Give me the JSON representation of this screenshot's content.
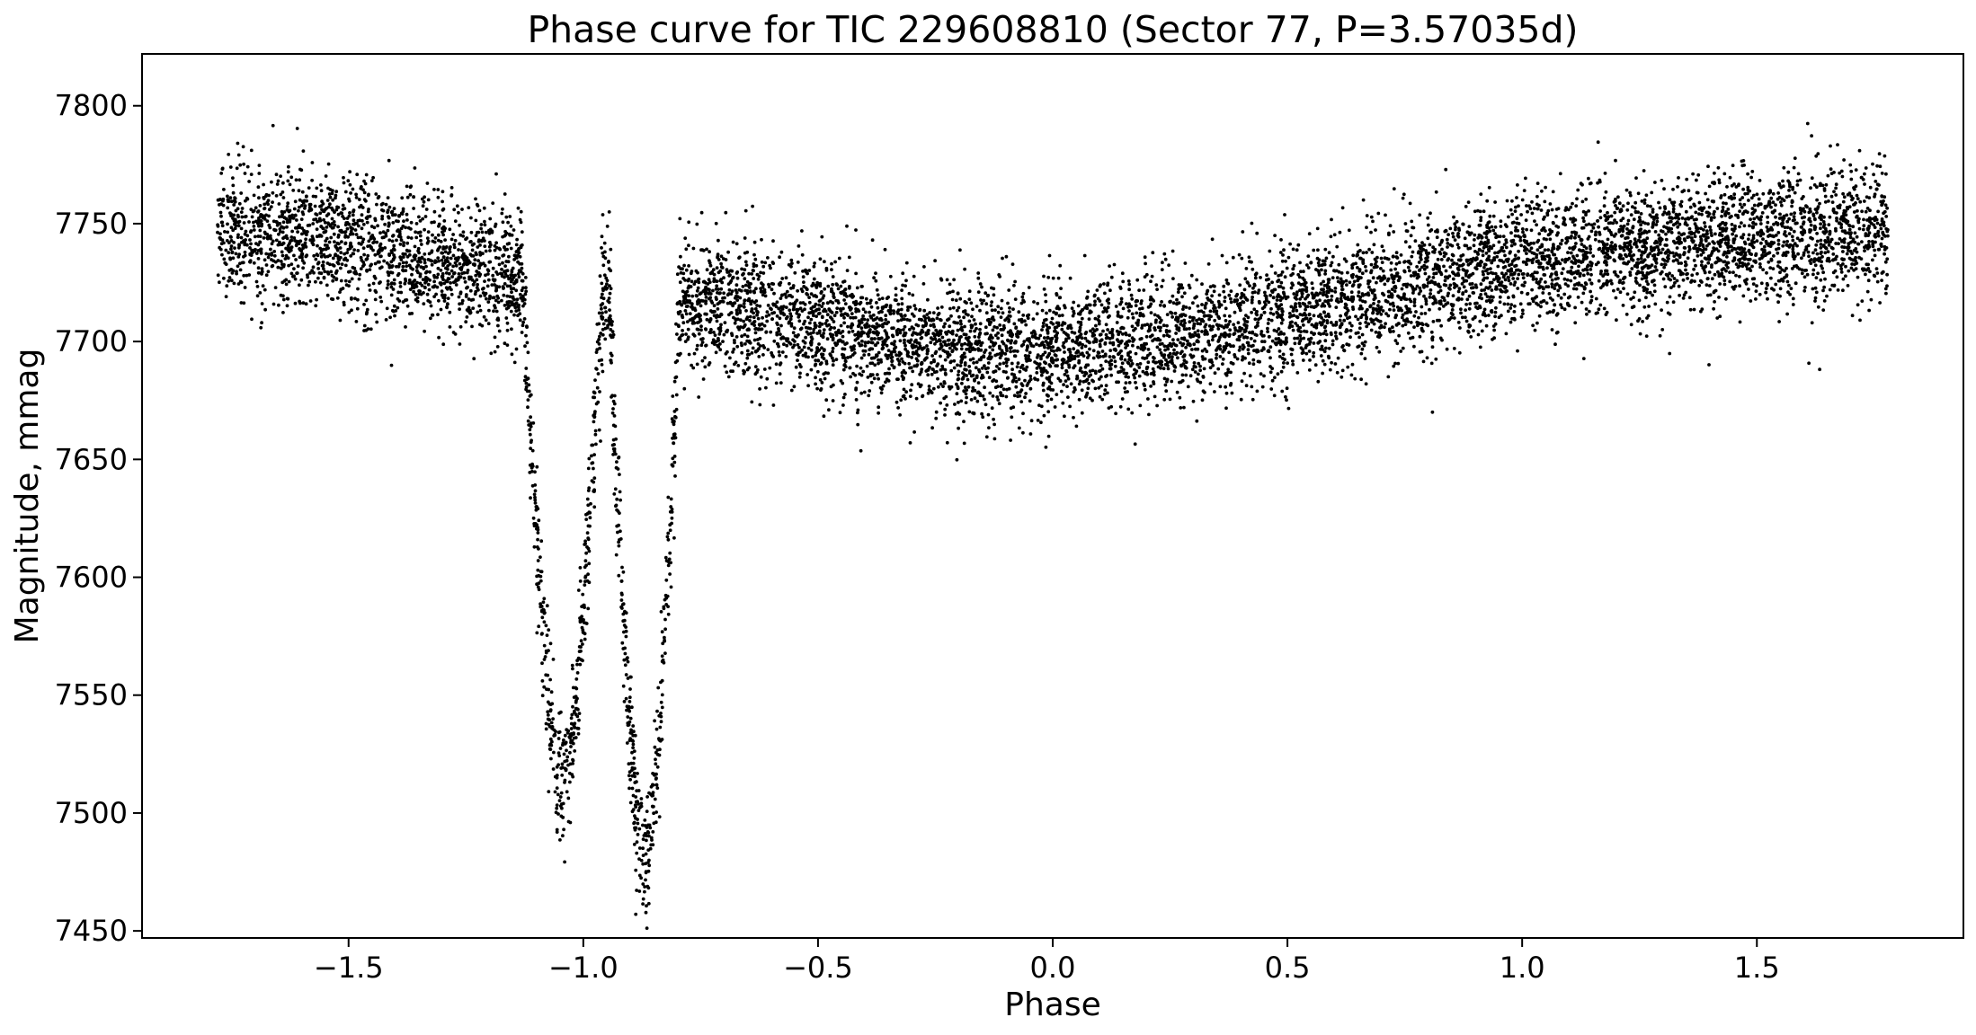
{
  "chart_data": {
    "type": "scatter",
    "title": "Phase curve for TIC 229608810 (Sector 77, P=3.57035d)",
    "xlabel": "Phase",
    "ylabel": "Magnitude, mmag",
    "xlim": [
      -1.94,
      1.94
    ],
    "ylim": [
      7447,
      7822
    ],
    "xticks": [
      -1.5,
      -1.0,
      -0.5,
      0.0,
      0.5,
      1.0,
      1.5
    ],
    "xtick_labels": [
      "−1.5",
      "−1.0",
      "−0.5",
      "0.0",
      "0.5",
      "1.0",
      "1.5"
    ],
    "yticks": [
      7450,
      7500,
      7550,
      7600,
      7650,
      7700,
      7750,
      7800
    ],
    "ytick_labels": [
      "7450",
      "7500",
      "7550",
      "7600",
      "7650",
      "7700",
      "7750",
      "7800"
    ],
    "grid": false,
    "legend": false,
    "marker_color": "#000000",
    "phase_range": [
      -1.78,
      1.78
    ],
    "trend": {
      "phase": [
        -1.78,
        -1.6,
        -1.4,
        -1.2,
        -1.1,
        -1.0,
        -0.8,
        -0.6,
        -0.4,
        -0.2,
        0.0,
        0.2,
        0.4,
        0.6,
        0.8,
        1.0,
        1.2,
        1.4,
        1.6,
        1.78
      ],
      "magnitude": [
        7745,
        7744,
        7738,
        7730,
        7725,
        7722,
        7718,
        7712,
        7702,
        7696,
        7696,
        7701,
        7706,
        7715,
        7725,
        7733,
        7738,
        7743,
        7745,
        7746
      ]
    },
    "eclipses": [
      {
        "center": -1.045,
        "half_width": 0.085,
        "min_magnitude": 7512
      },
      {
        "center": -0.87,
        "half_width": 0.075,
        "min_magnitude": 7475
      }
    ],
    "scatter_sigma": 14,
    "n_points": 9500
  }
}
